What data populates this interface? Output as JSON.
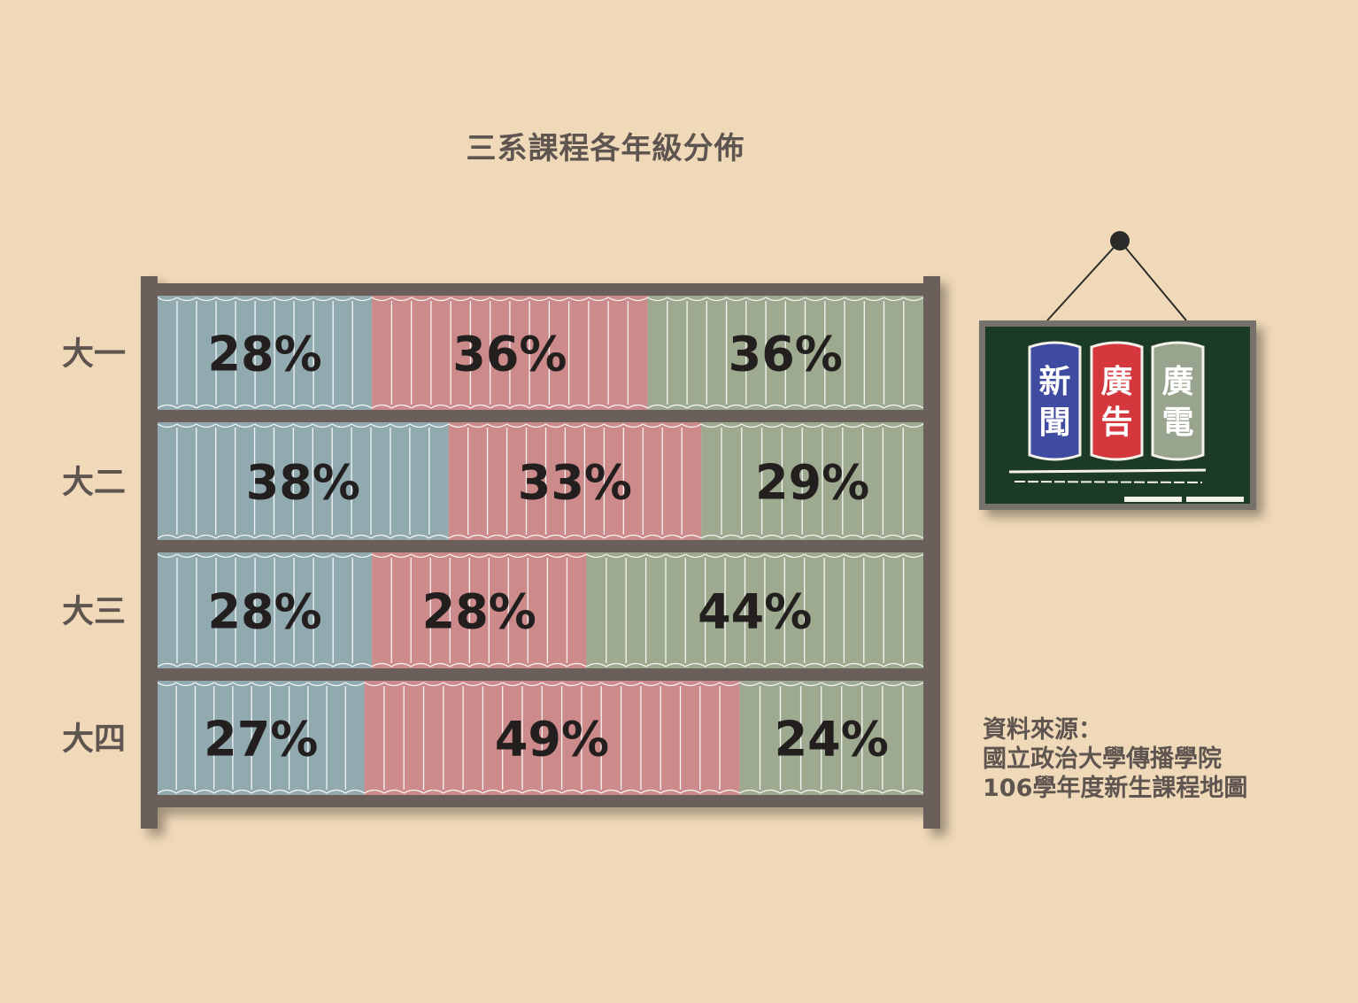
{
  "title": "三系課程各年級分佈",
  "legend": {
    "items": [
      {
        "chars": [
          "新",
          "聞"
        ],
        "color": "#3f4ba0"
      },
      {
        "chars": [
          "廣",
          "告"
        ],
        "color": "#d4383d"
      },
      {
        "chars": [
          "廣",
          "電"
        ],
        "color": "#98a48e"
      }
    ]
  },
  "source": {
    "lines": [
      "資料來源：",
      "國立政治大學傳播學院",
      "106學年度新生課程地圖"
    ]
  },
  "chart_data": {
    "type": "bar",
    "orientation": "horizontal",
    "stacked": "percent",
    "title": "三系課程各年級分佈",
    "categories": [
      "大一",
      "大二",
      "大三",
      "大四"
    ],
    "series": [
      {
        "name": "新聞",
        "values": [
          28,
          38,
          28,
          27
        ],
        "labels": [
          "28%",
          "38%",
          "28%",
          "27%"
        ],
        "color": "#90aab0"
      },
      {
        "name": "廣告",
        "values": [
          36,
          33,
          28,
          49
        ],
        "labels": [
          "36%",
          "33%",
          "28%",
          "49%"
        ],
        "color": "#cc8a8a"
      },
      {
        "name": "廣電",
        "values": [
          36,
          29,
          44,
          24
        ],
        "labels": [
          "36%",
          "29%",
          "44%",
          "24%"
        ],
        "color": "#9eaa90"
      }
    ],
    "xlim": [
      0,
      100
    ],
    "grid": false,
    "legend_position": "right"
  }
}
